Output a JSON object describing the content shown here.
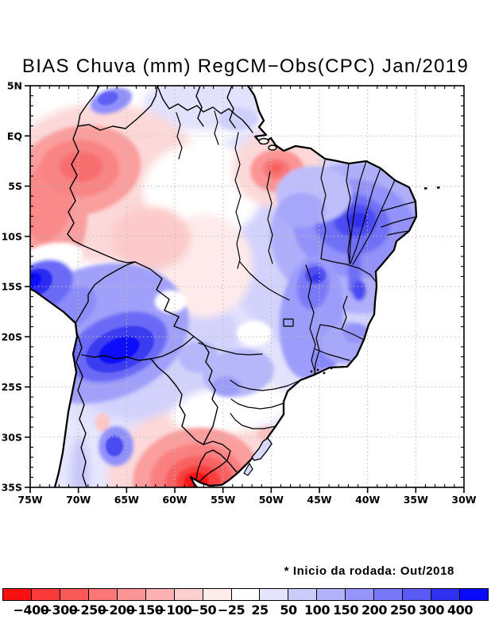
{
  "title": "BIAS Chuva (mm) RegCM−Obs(CPC) Jan/2019",
  "footnote": "* Inicio da rodada: Out/2018",
  "axes": {
    "lat_labels": [
      "5N",
      "EQ",
      "5S",
      "10S",
      "15S",
      "20S",
      "25S",
      "30S",
      "35S"
    ],
    "lon_labels": [
      "75W",
      "70W",
      "65W",
      "60W",
      "55W",
      "50W",
      "45W",
      "40W",
      "35W",
      "30W"
    ]
  },
  "colorbar": {
    "tick_labels": [
      "−400",
      "−300",
      "−250",
      "−200",
      "−150",
      "−100",
      "−50",
      "−25",
      "25",
      "50",
      "100",
      "150",
      "200",
      "250",
      "300",
      "400"
    ],
    "segment_colors": [
      "#F91111",
      "#F93B3B",
      "#FA5A5A",
      "#FB7878",
      "#FB9595",
      "#FCB2B2",
      "#FDCFCF",
      "#FEEBEB",
      "#FFFFFF",
      "#E4E4FD",
      "#CCCCFC",
      "#B2B2FB",
      "#9595FA",
      "#7878F8",
      "#5A5AF4",
      "#3030F0",
      "#0A0AFA"
    ],
    "negative_color_meaning": "#F91111",
    "positive_color_meaning": "#0A0AFA"
  }
}
